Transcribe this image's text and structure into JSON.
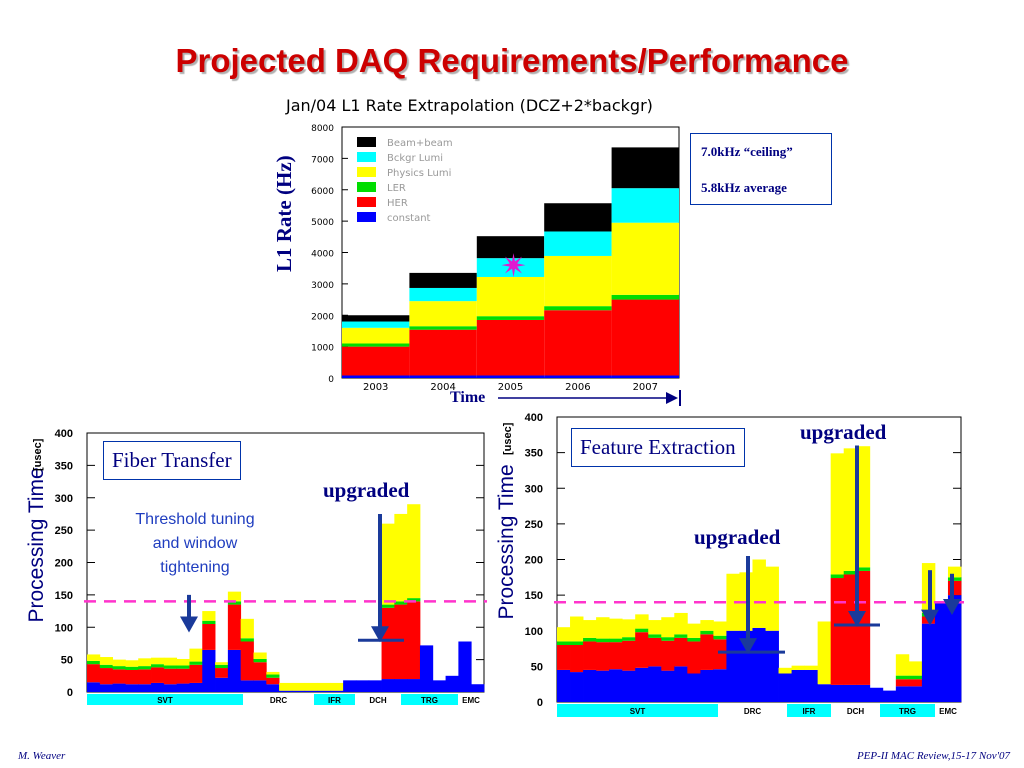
{
  "slide": {
    "title": "Projected DAQ Requirements/Performance",
    "footer_left": "M. Weaver",
    "footer_right": "PEP-II  MAC Review,15-17 Nov'07"
  },
  "annotations": {
    "ceiling": "7.0kHz “ceiling”",
    "average": "5.8kHz average",
    "rate_axis": "L1 Rate (Hz)",
    "time_label": "Time",
    "fiber_box": "Fiber Transfer",
    "feature_box": "Feature Extraction",
    "upgraded": "upgraded",
    "threshold_lines": [
      "Threshold tuning",
      "and window",
      "tightening"
    ]
  },
  "colors": {
    "title_red": "#cc0000",
    "navy": "#000080",
    "constant": "#0000ff",
    "her": "#ff0000",
    "ler": "#00dd00",
    "physics": "#ffff00",
    "bckgr": "#00ffff",
    "beambeam": "#000000",
    "segment_cyan": "#00ffff",
    "dashed_line": "#ff33cc",
    "arrow": "#1a3a9a"
  },
  "chart_data": [
    {
      "type": "bar",
      "title": "Jan/04 L1 Rate Extrapolation (DCZ+2*backgr)",
      "ylabel": "L1 Rate (Hz)",
      "xlabel": "Time",
      "ylim": [
        0,
        8000
      ],
      "yticks": [
        0,
        1000,
        2000,
        3000,
        4000,
        5000,
        6000,
        7000,
        8000
      ],
      "categories": [
        "2003",
        "2004",
        "2005",
        "2006",
        "2007"
      ],
      "stacked": true,
      "legend_position": "top-left",
      "series": [
        {
          "name": "constant",
          "color": "#0000ff",
          "values": [
            80,
            80,
            80,
            80,
            80
          ]
        },
        {
          "name": "HER",
          "color": "#ff0000",
          "values": [
            920,
            1460,
            1770,
            2080,
            2420
          ]
        },
        {
          "name": "LER",
          "color": "#00dd00",
          "values": [
            100,
            110,
            120,
            130,
            150
          ]
        },
        {
          "name": "Physics Lumi",
          "color": "#ffff00",
          "values": [
            500,
            800,
            1250,
            1600,
            2300
          ]
        },
        {
          "name": "Bckgr Lumi",
          "color": "#00ffff",
          "values": [
            200,
            420,
            600,
            780,
            1100
          ]
        },
        {
          "name": "Beam+beam",
          "color": "#000000",
          "values": [
            200,
            480,
            700,
            900,
            1300
          ]
        }
      ],
      "marker": {
        "category": "2005",
        "value": 3600,
        "shape": "star",
        "color": "#e01ad0"
      },
      "ceiling_hz": 7000,
      "average_hz": 5800
    },
    {
      "type": "bar",
      "title": "",
      "ylabel": "Processing Time",
      "yunit": "[usec]",
      "ylim": [
        0,
        400
      ],
      "yticks": [
        0,
        50,
        100,
        150,
        200,
        250,
        300,
        350,
        400
      ],
      "stacked": true,
      "segments": [
        "SVT",
        "DRC",
        "IFR",
        "DCH",
        "TRG",
        "EMC"
      ],
      "reference_line": 140,
      "bars": [
        {
          "blue": 15,
          "red": 28,
          "yellow": 10
        },
        {
          "blue": 12,
          "red": 25,
          "yellow": 12
        },
        {
          "blue": 13,
          "red": 22,
          "yellow": 10
        },
        {
          "blue": 12,
          "red": 22,
          "yellow": 10
        },
        {
          "blue": 12,
          "red": 23,
          "yellow": 12
        },
        {
          "blue": 14,
          "red": 24,
          "yellow": 10
        },
        {
          "blue": 12,
          "red": 24,
          "yellow": 12
        },
        {
          "blue": 13,
          "red": 23,
          "yellow": 10
        },
        {
          "blue": 14,
          "red": 28,
          "yellow": 20
        },
        {
          "blue": 65,
          "red": 40,
          "yellow": 15
        },
        {
          "blue": 22,
          "red": 15,
          "yellow": 4
        },
        {
          "blue": 65,
          "red": 70,
          "yellow": 15
        },
        {
          "blue": 18,
          "red": 60,
          "yellow": 30
        },
        {
          "blue": 18,
          "red": 28,
          "yellow": 10
        },
        {
          "blue": 12,
          "red": 10,
          "yellow": 4
        },
        {
          "blue": 2,
          "red": 0,
          "yellow": 12
        },
        {
          "blue": 2,
          "red": 0,
          "yellow": 12
        },
        {
          "blue": 2,
          "red": 0,
          "yellow": 12
        },
        {
          "blue": 2,
          "red": 0,
          "yellow": 12
        },
        {
          "blue": 2,
          "red": 0,
          "yellow": 12
        },
        {
          "blue": 18,
          "red": 0,
          "yellow": 0
        },
        {
          "blue": 18,
          "red": 0,
          "yellow": 0
        },
        {
          "blue": 18,
          "red": 0,
          "yellow": 0
        },
        {
          "blue": 20,
          "red": 110,
          "yellow": 125
        },
        {
          "blue": 20,
          "red": 115,
          "yellow": 135
        },
        {
          "blue": 20,
          "red": 120,
          "yellow": 145
        },
        {
          "blue": 72,
          "red": 0,
          "yellow": 0
        },
        {
          "blue": 18,
          "red": 0,
          "yellow": 0
        },
        {
          "blue": 25,
          "red": 0,
          "yellow": 0
        },
        {
          "blue": 78,
          "red": 0,
          "yellow": 0
        },
        {
          "blue": 12,
          "red": 0,
          "yellow": 0
        }
      ],
      "upgraded_arrow": {
        "segment": "DCH",
        "from": 275,
        "to": 80
      },
      "threshold_arrow": {
        "segment": "SVT",
        "from": 150,
        "to": 95
      }
    },
    {
      "type": "bar",
      "title": "",
      "ylabel": "Processing Time",
      "yunit": "[usec]",
      "ylim": [
        0,
        400
      ],
      "yticks": [
        0,
        50,
        100,
        150,
        200,
        250,
        300,
        350,
        400
      ],
      "stacked": true,
      "segments": [
        "SVT",
        "DRC",
        "IFR",
        "DCH",
        "TRG",
        "EMC"
      ],
      "reference_line": 140,
      "bars": [
        {
          "blue": 45,
          "red": 35,
          "yellow": 20
        },
        {
          "blue": 42,
          "red": 38,
          "yellow": 35
        },
        {
          "blue": 45,
          "red": 40,
          "yellow": 25
        },
        {
          "blue": 44,
          "red": 40,
          "yellow": 30
        },
        {
          "blue": 46,
          "red": 38,
          "yellow": 28
        },
        {
          "blue": 44,
          "red": 42,
          "yellow": 25
        },
        {
          "blue": 48,
          "red": 50,
          "yellow": 20
        },
        {
          "blue": 50,
          "red": 40,
          "yellow": 20
        },
        {
          "blue": 44,
          "red": 42,
          "yellow": 28
        },
        {
          "blue": 50,
          "red": 40,
          "yellow": 30
        },
        {
          "blue": 40,
          "red": 45,
          "yellow": 20
        },
        {
          "blue": 45,
          "red": 50,
          "yellow": 15
        },
        {
          "blue": 46,
          "red": 42,
          "yellow": 20
        },
        {
          "blue": 100,
          "red": 0,
          "yellow": 80
        },
        {
          "blue": 100,
          "red": 0,
          "yellow": 82
        },
        {
          "blue": 104,
          "red": 0,
          "yellow": 96
        },
        {
          "blue": 100,
          "red": 0,
          "yellow": 90
        },
        {
          "blue": 40,
          "red": 0,
          "yellow": 8
        },
        {
          "blue": 45,
          "red": 0,
          "yellow": 6
        },
        {
          "blue": 45,
          "red": 0,
          "yellow": 6
        },
        {
          "blue": 25,
          "red": 0,
          "yellow": 88
        },
        {
          "blue": 24,
          "red": 150,
          "yellow": 170
        },
        {
          "blue": 24,
          "red": 155,
          "yellow": 172
        },
        {
          "blue": 24,
          "red": 160,
          "yellow": 170
        },
        {
          "blue": 20,
          "red": 0,
          "yellow": 0
        },
        {
          "blue": 16,
          "red": 0,
          "yellow": 0
        },
        {
          "blue": 22,
          "red": 10,
          "yellow": 30
        },
        {
          "blue": 22,
          "red": 10,
          "yellow": 20
        },
        {
          "blue": 110,
          "red": 10,
          "yellow": 70
        },
        {
          "blue": 140,
          "red": 0,
          "yellow": 0
        },
        {
          "blue": 150,
          "red": 20,
          "yellow": 15
        }
      ],
      "upgraded_arrows": [
        {
          "segment": "DRC",
          "from": 205,
          "to": 70
        },
        {
          "segment": "DCH",
          "from": 360,
          "to": 108
        },
        {
          "segment": "TRG",
          "from": 185,
          "to": 110
        },
        {
          "segment": "EMC",
          "from": 180,
          "to": 125
        }
      ]
    }
  ]
}
